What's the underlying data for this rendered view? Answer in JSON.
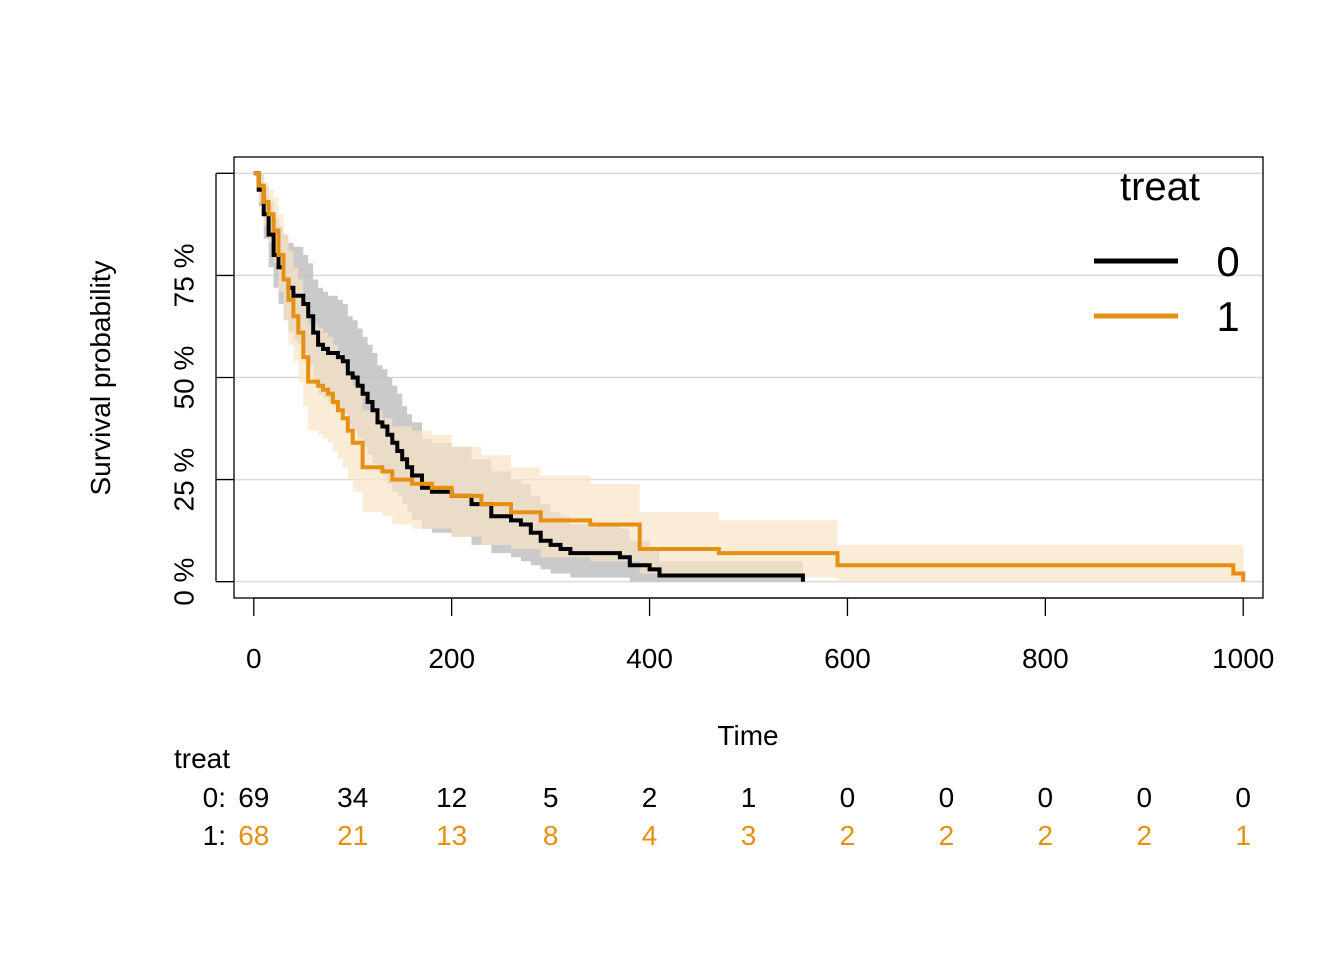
{
  "chart_data": {
    "type": "line",
    "subtype": "kaplan-meier",
    "title": "",
    "xlabel": "Time",
    "ylabel": "Survival probability",
    "xlim": [
      -20,
      1020
    ],
    "ylim": [
      -0.04,
      1.04
    ],
    "x_ticks": [
      0,
      200,
      400,
      600,
      800,
      1000
    ],
    "y_ticks": [
      0,
      0.25,
      0.5,
      0.75
    ],
    "y_tick_labels": [
      "0 %",
      "25 %",
      "50 %",
      "75 %"
    ],
    "gridlines": "horizontal",
    "confidence_bands": true,
    "legend": {
      "title": "treat",
      "position": "top-right"
    },
    "series": [
      {
        "name": "0",
        "color": "#000000",
        "band_color": "#bdbdbd",
        "x": [
          0,
          5,
          10,
          15,
          20,
          25,
          30,
          35,
          40,
          45,
          50,
          55,
          60,
          65,
          70,
          75,
          80,
          85,
          90,
          95,
          100,
          105,
          110,
          115,
          120,
          125,
          130,
          135,
          140,
          145,
          150,
          155,
          160,
          170,
          180,
          200,
          220,
          240,
          260,
          270,
          280,
          290,
          300,
          310,
          320,
          340,
          370,
          380,
          400,
          410,
          555
        ],
        "y": [
          1.0,
          0.96,
          0.9,
          0.85,
          0.8,
          0.77,
          0.74,
          0.72,
          0.7,
          0.7,
          0.68,
          0.65,
          0.61,
          0.58,
          0.57,
          0.56,
          0.56,
          0.55,
          0.54,
          0.51,
          0.5,
          0.48,
          0.46,
          0.44,
          0.42,
          0.39,
          0.38,
          0.36,
          0.34,
          0.32,
          0.3,
          0.28,
          0.26,
          0.23,
          0.22,
          0.21,
          0.19,
          0.16,
          0.15,
          0.14,
          0.12,
          0.1,
          0.09,
          0.08,
          0.07,
          0.07,
          0.06,
          0.04,
          0.03,
          0.015,
          0.0
        ],
        "lower": [
          1.0,
          0.92,
          0.84,
          0.77,
          0.72,
          0.68,
          0.64,
          0.61,
          0.59,
          0.58,
          0.56,
          0.53,
          0.49,
          0.46,
          0.45,
          0.44,
          0.43,
          0.42,
          0.41,
          0.38,
          0.37,
          0.35,
          0.33,
          0.31,
          0.29,
          0.27,
          0.26,
          0.24,
          0.22,
          0.21,
          0.19,
          0.17,
          0.15,
          0.13,
          0.12,
          0.11,
          0.09,
          0.07,
          0.06,
          0.05,
          0.04,
          0.03,
          0.02,
          0.02,
          0.01,
          0.01,
          0.01,
          0.0,
          0.0,
          0.0,
          0.0
        ],
        "upper": [
          1.0,
          1.0,
          0.97,
          0.93,
          0.89,
          0.87,
          0.85,
          0.83,
          0.82,
          0.82,
          0.8,
          0.78,
          0.74,
          0.72,
          0.71,
          0.7,
          0.7,
          0.69,
          0.68,
          0.65,
          0.64,
          0.62,
          0.6,
          0.58,
          0.56,
          0.53,
          0.52,
          0.5,
          0.48,
          0.46,
          0.43,
          0.41,
          0.39,
          0.35,
          0.34,
          0.33,
          0.3,
          0.27,
          0.25,
          0.24,
          0.21,
          0.19,
          0.17,
          0.16,
          0.14,
          0.14,
          0.13,
          0.1,
          0.08,
          0.05,
          0.0
        ]
      },
      {
        "name": "1",
        "color": "#e69012",
        "band_color": "#f9e4c6",
        "x": [
          0,
          5,
          10,
          15,
          20,
          25,
          30,
          35,
          40,
          45,
          50,
          55,
          65,
          70,
          75,
          80,
          85,
          90,
          95,
          100,
          110,
          120,
          130,
          140,
          150,
          160,
          180,
          200,
          230,
          260,
          290,
          340,
          390,
          470,
          590,
          990,
          1000
        ],
        "y": [
          1.0,
          0.97,
          0.93,
          0.9,
          0.86,
          0.8,
          0.74,
          0.69,
          0.65,
          0.61,
          0.55,
          0.49,
          0.48,
          0.47,
          0.46,
          0.44,
          0.42,
          0.4,
          0.37,
          0.34,
          0.28,
          0.28,
          0.27,
          0.25,
          0.25,
          0.24,
          0.23,
          0.21,
          0.19,
          0.17,
          0.15,
          0.14,
          0.08,
          0.07,
          0.04,
          0.02,
          0.0
        ],
        "lower": [
          1.0,
          0.93,
          0.87,
          0.83,
          0.78,
          0.71,
          0.64,
          0.58,
          0.54,
          0.49,
          0.43,
          0.37,
          0.36,
          0.35,
          0.34,
          0.32,
          0.3,
          0.28,
          0.25,
          0.22,
          0.17,
          0.17,
          0.16,
          0.14,
          0.14,
          0.13,
          0.13,
          0.11,
          0.09,
          0.08,
          0.06,
          0.05,
          0.02,
          0.01,
          0.0,
          0.0,
          0.0
        ],
        "upper": [
          1.0,
          1.0,
          0.98,
          0.96,
          0.94,
          0.9,
          0.85,
          0.81,
          0.77,
          0.74,
          0.68,
          0.63,
          0.62,
          0.61,
          0.6,
          0.58,
          0.56,
          0.54,
          0.51,
          0.48,
          0.42,
          0.42,
          0.4,
          0.38,
          0.38,
          0.37,
          0.36,
          0.33,
          0.31,
          0.28,
          0.26,
          0.24,
          0.17,
          0.15,
          0.09,
          0.09,
          0.09
        ]
      }
    ]
  },
  "risk_table": {
    "title": "treat",
    "times": [
      0,
      100,
      200,
      300,
      400,
      500,
      600,
      700,
      800,
      900,
      1000
    ],
    "rows": [
      {
        "label": "0:",
        "color": "#000000",
        "counts": [
          "69",
          "34",
          "12",
          "5",
          "2",
          "1",
          "0",
          "0",
          "0",
          "0",
          "0"
        ]
      },
      {
        "label": "1:",
        "color": "#e69012",
        "counts": [
          "68",
          "21",
          "13",
          "8",
          "4",
          "3",
          "2",
          "2",
          "2",
          "2",
          "1"
        ]
      }
    ]
  }
}
